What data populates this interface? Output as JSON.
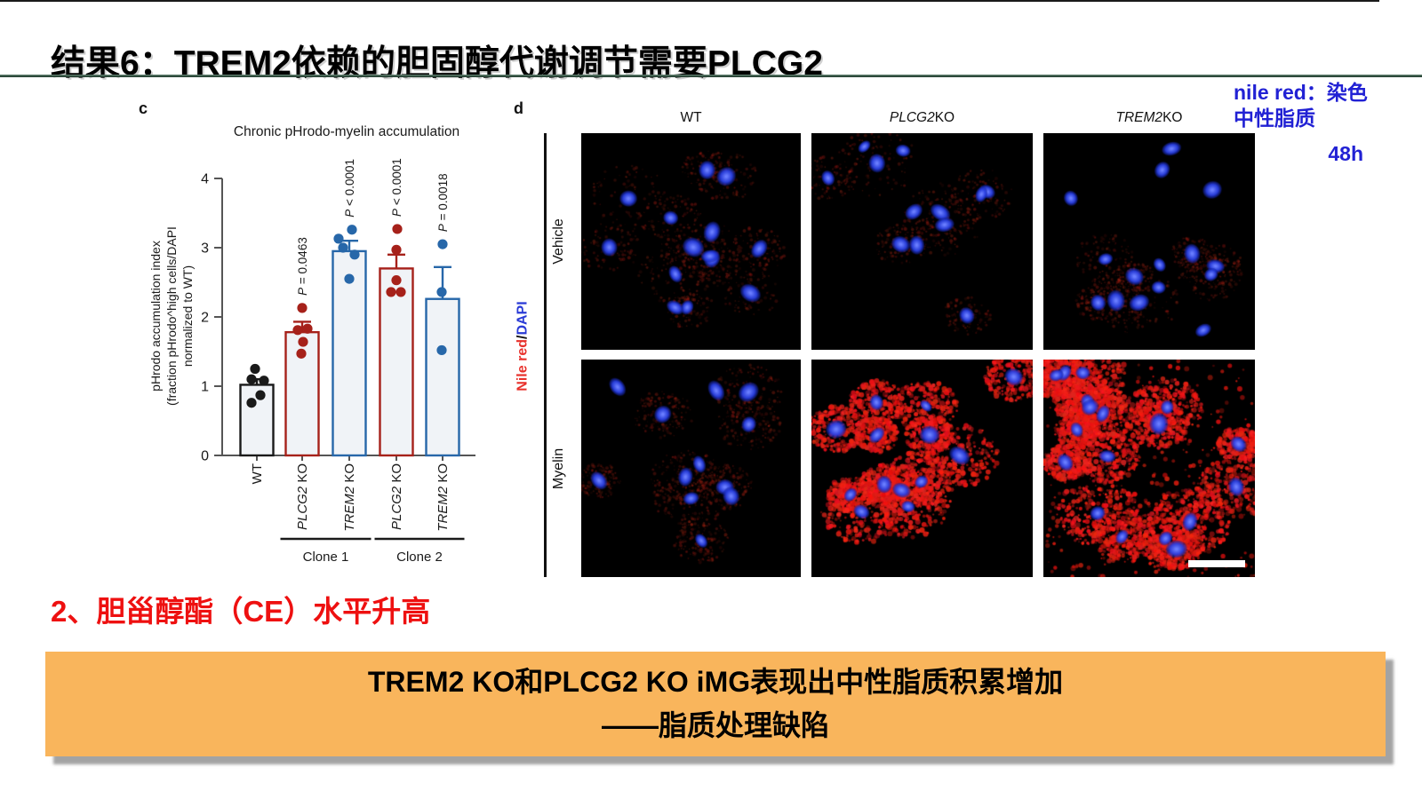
{
  "slide": {
    "title": "结果6：TREM2依赖的胆固醇代谢调节需要PLCG2",
    "note_blue": "nile red：染色中性脂质",
    "note_time": "48h",
    "caption_red": "2、胆甾醇酯（CE）水平升高",
    "banner_line1": "TREM2 KO和PLCG2 KO iMG表现出中性脂质积累增加",
    "banner_line2": "——脂质处理缺陷",
    "colors": {
      "banner_bg": "#F9B55C",
      "blue_text": "#2121D4",
      "red_text": "#EE1010",
      "divider_green": "#2E4C3C",
      "bar_red": "#A6211A",
      "bar_blue": "#2767A9"
    }
  },
  "chart_data": {
    "type": "bar",
    "panel_label": "c",
    "title": "Chronic pHrodo-myelin accumulation",
    "ylabel_lines": [
      "pHrodo accumulation index",
      "(fraction pHrodo^high cells/DAPI",
      "normalized to WT)"
    ],
    "ylim": [
      0,
      4
    ],
    "yticks": [
      0,
      1,
      2,
      3,
      4
    ],
    "grid": false,
    "bar_fill": "#F0F3F7",
    "bars": [
      {
        "gene": "",
        "rest": "WT",
        "mean": 1.02,
        "err_top": 1.1,
        "color": "#1a1a1a",
        "p_label": "",
        "points": [
          {
            "v": 1.25,
            "dx": -2
          },
          {
            "v": 1.1,
            "dx": -6
          },
          {
            "v": 1.08,
            "dx": 8
          },
          {
            "v": 0.87,
            "dx": 4
          },
          {
            "v": 0.76,
            "dx": -6
          }
        ]
      },
      {
        "gene": "PLCG2",
        "rest": " KO",
        "mean": 1.78,
        "err_top": 1.93,
        "color": "#A6211A",
        "p_label": "P = 0.0463",
        "points": [
          {
            "v": 2.13,
            "dx": 0
          },
          {
            "v": 1.83,
            "dx": 6
          },
          {
            "v": 1.81,
            "dx": -5
          },
          {
            "v": 1.64,
            "dx": 1
          },
          {
            "v": 1.47,
            "dx": -1
          }
        ]
      },
      {
        "gene": "TREM2",
        "rest": " KO",
        "mean": 2.95,
        "err_top": 3.1,
        "color": "#2767A9",
        "p_label": "P < 0.0001",
        "points": [
          {
            "v": 3.26,
            "dx": 3
          },
          {
            "v": 3.13,
            "dx": -12
          },
          {
            "v": 3.0,
            "dx": -7
          },
          {
            "v": 2.9,
            "dx": 6
          },
          {
            "v": 2.55,
            "dx": 0
          }
        ]
      },
      {
        "gene": "PLCG2",
        "rest": " KO",
        "mean": 2.7,
        "err_top": 2.9,
        "color": "#A6211A",
        "p_label": "P < 0.0001",
        "points": [
          {
            "v": 3.27,
            "dx": 1
          },
          {
            "v": 2.97,
            "dx": 0
          },
          {
            "v": 2.53,
            "dx": 0
          },
          {
            "v": 2.36,
            "dx": -6
          },
          {
            "v": 2.36,
            "dx": 5
          }
        ]
      },
      {
        "gene": "TREM2",
        "rest": " KO",
        "mean": 2.26,
        "err_top": 2.72,
        "color": "#2767A9",
        "p_label": "P = 0.0018",
        "points": [
          {
            "v": 3.05,
            "dx": 0
          },
          {
            "v": 2.36,
            "dx": -1
          },
          {
            "v": 1.52,
            "dx": -1
          }
        ]
      }
    ],
    "groups": [
      {
        "label": "Clone 1",
        "from": 1,
        "to": 2
      },
      {
        "label": "Clone 2",
        "from": 3,
        "to": 4
      }
    ]
  },
  "panel_d": {
    "panel_label": "d",
    "columns": [
      {
        "gene": "",
        "rest": "WT"
      },
      {
        "gene": "PLCG2",
        "rest": " KO"
      },
      {
        "gene": "TREM2",
        "rest": " KO"
      }
    ],
    "rows": [
      "Vehicle",
      "Myelin"
    ],
    "stain_label_parts": [
      {
        "text": "Nile red",
        "color": "#E8302A"
      },
      {
        "text": "/",
        "color": "#111111"
      },
      {
        "text": "DAPI",
        "color": "#2A3BD6"
      }
    ],
    "tiles": [
      {
        "row": "Vehicle",
        "col": "WT",
        "nuclei": 14,
        "red_level": 0.22,
        "scale_bar": false
      },
      {
        "row": "Vehicle",
        "col": "PLCG2 KO",
        "nuclei": 12,
        "red_level": 0.26,
        "scale_bar": false
      },
      {
        "row": "Vehicle",
        "col": "TREM2 KO",
        "nuclei": 15,
        "red_level": 0.3,
        "scale_bar": false
      },
      {
        "row": "Myelin",
        "col": "WT",
        "nuclei": 12,
        "red_level": 0.5,
        "scale_bar": false
      },
      {
        "row": "Myelin",
        "col": "PLCG2 KO",
        "nuclei": 13,
        "red_level": 0.85,
        "scale_bar": false
      },
      {
        "row": "Myelin",
        "col": "TREM2 KO",
        "nuclei": 18,
        "red_level": 1.0,
        "scale_bar": true
      }
    ]
  }
}
